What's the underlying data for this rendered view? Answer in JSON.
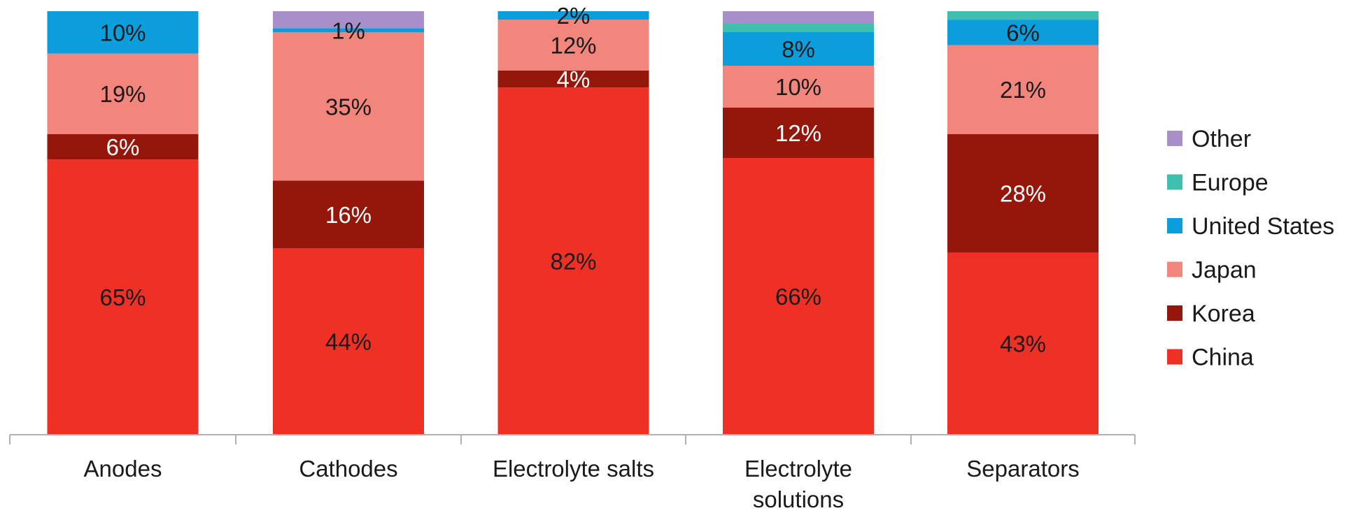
{
  "chart_data": {
    "type": "bar",
    "stacked": true,
    "normalized": true,
    "categories": [
      "Anodes",
      "Cathodes",
      "Electrolyte salts",
      "Electrolyte solutions",
      "Separators"
    ],
    "series": [
      {
        "name": "China",
        "color": "#ee3124",
        "values": [
          65,
          44,
          82,
          66,
          43
        ],
        "labels": [
          "65%",
          "44%",
          "82%",
          "66%",
          "43%"
        ],
        "label_color": "#1a1a1a"
      },
      {
        "name": "Korea",
        "color": "#95160b",
        "values": [
          6,
          16,
          4,
          12,
          28
        ],
        "labels": [
          "6%",
          "16%",
          "4%",
          "12%",
          "28%"
        ],
        "label_color": "#ffffff"
      },
      {
        "name": "Japan",
        "color": "#f2857c",
        "values": [
          19,
          35,
          12,
          10,
          21
        ],
        "labels": [
          "19%",
          "35%",
          "12%",
          "10%",
          "21%"
        ],
        "label_color": "#1a1a1a"
      },
      {
        "name": "United States",
        "color": "#0c9ddc",
        "values": [
          10,
          1,
          2,
          8,
          6
        ],
        "labels": [
          "10%",
          "1%",
          "2%",
          "8%",
          "6%"
        ],
        "label_color": "#1a1a1a"
      },
      {
        "name": "Europe",
        "color": "#3fbfad",
        "values": [
          0,
          0,
          0,
          2,
          2
        ],
        "labels": [
          "",
          "",
          "",
          "",
          ""
        ],
        "label_color": "#1a1a1a"
      },
      {
        "name": "Other",
        "color": "#a98fc9",
        "values": [
          0,
          4,
          0,
          3,
          0
        ],
        "labels": [
          "",
          "",
          "",
          "",
          ""
        ],
        "label_color": "#1a1a1a"
      }
    ],
    "legend_order": [
      "Other",
      "Europe",
      "United States",
      "Japan",
      "Korea",
      "China"
    ],
    "legend_position": "right",
    "ylim": [
      0,
      100
    ],
    "grid": false
  }
}
